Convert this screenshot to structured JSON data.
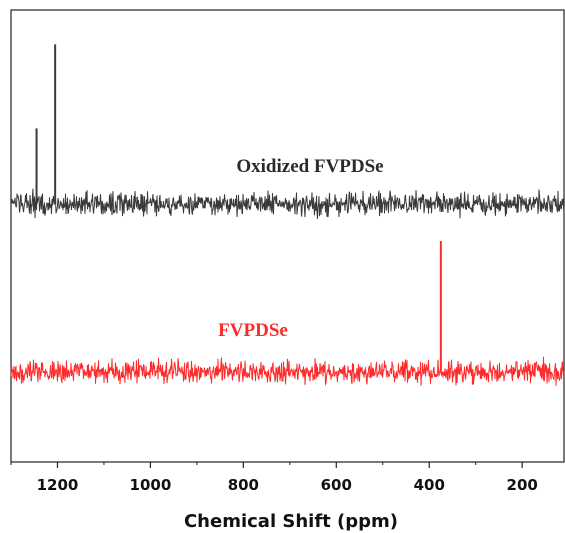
{
  "chart_data": {
    "type": "line",
    "xlabel": "Chemical Shift (ppm)",
    "ylabel": "",
    "xlim": [
      1300,
      110
    ],
    "x_reversed": true,
    "x_ticks": [
      1200,
      1000,
      800,
      600,
      400,
      200
    ],
    "y_ticks_shown": false,
    "grid": false,
    "series": [
      {
        "name": "Oxidized FVPDSe",
        "color": "#3a3a3a",
        "baseline_offset": 1.0,
        "noise_amplitude": 0.1,
        "peaks": [
          {
            "x": 1245,
            "height": 0.45
          },
          {
            "x": 1205,
            "height": 0.95
          }
        ]
      },
      {
        "name": "FVPDSe",
        "color": "#ff2a2a",
        "baseline_offset": 0.0,
        "noise_amplitude": 0.1,
        "peaks": [
          {
            "x": 375,
            "height": 0.78
          }
        ]
      }
    ]
  }
}
